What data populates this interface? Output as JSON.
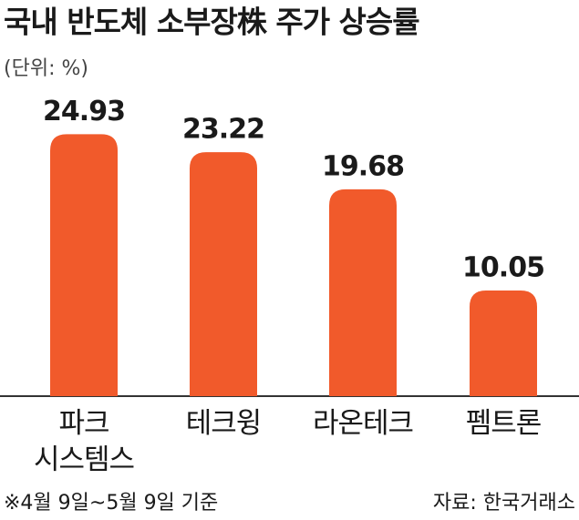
{
  "chart_data": {
    "type": "bar",
    "title": "국내 반도체 소부장株 주가 상승률",
    "subtitle": "(단위: %)",
    "categories": [
      [
        "파크",
        "시스템스"
      ],
      [
        "테크윙"
      ],
      [
        "라온테크"
      ],
      [
        "펨트론"
      ]
    ],
    "values": [
      24.93,
      23.22,
      19.68,
      10.05
    ],
    "color": "#f15a2b",
    "ylim": [
      0,
      26
    ],
    "note": "※4월 9일~5월 9일 기준",
    "source": "자료: 한국거래소"
  }
}
